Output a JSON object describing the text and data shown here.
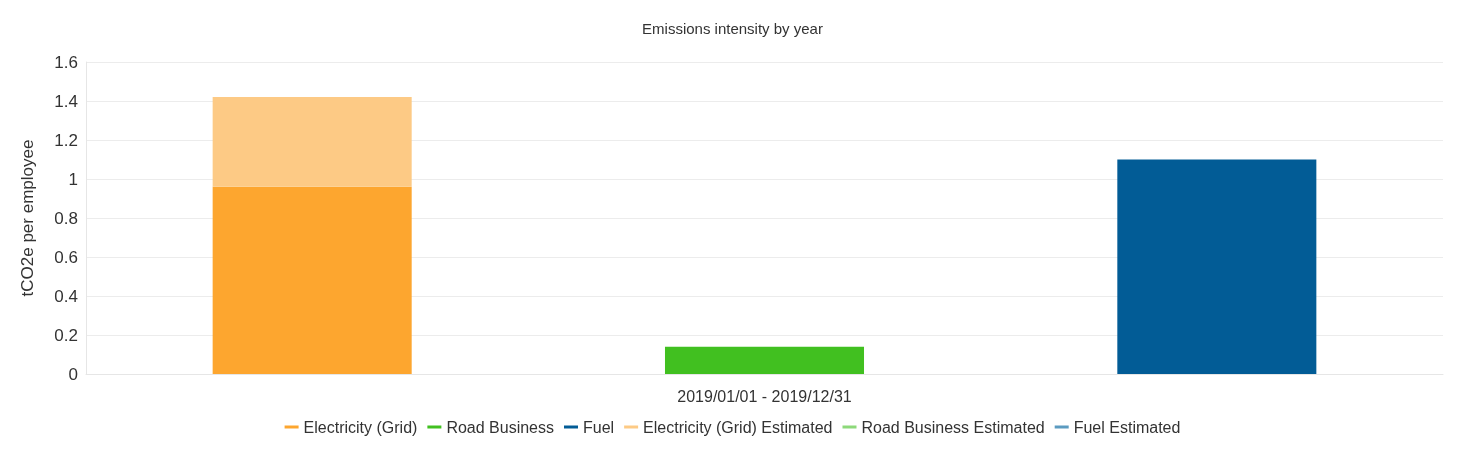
{
  "chart_data": {
    "type": "bar",
    "title": "Emissions intensity by year",
    "ylabel": "tCO2e per employee",
    "categories": [
      null,
      "2019/01/01 - 2019/12/31",
      null
    ],
    "stacked": true,
    "series": [
      {
        "name": "Electricity (Grid)",
        "color": "#fda62f",
        "values": [
          0.96,
          null,
          null
        ]
      },
      {
        "name": "Road Business",
        "color": "#41c020",
        "values": [
          null,
          0.14,
          null
        ]
      },
      {
        "name": "Fuel",
        "color": "#025c96",
        "values": [
          null,
          null,
          1.1
        ]
      },
      {
        "name": "Electricity (Grid) Estimated",
        "color": "#fdca85",
        "values": [
          0.46,
          null,
          null
        ]
      },
      {
        "name": "Road Business Estimated",
        "color": "#8dd97a",
        "values": [
          null,
          null,
          null
        ]
      },
      {
        "name": "Fuel Estimated",
        "color": "#5b9bc0",
        "values": [
          null,
          null,
          null
        ]
      }
    ],
    "ylim": [
      0,
      1.6
    ],
    "yticks": [
      0,
      0.2,
      0.4,
      0.6,
      0.8,
      1,
      1.2,
      1.4,
      1.6
    ],
    "grid": "y",
    "legend": "bottom"
  }
}
